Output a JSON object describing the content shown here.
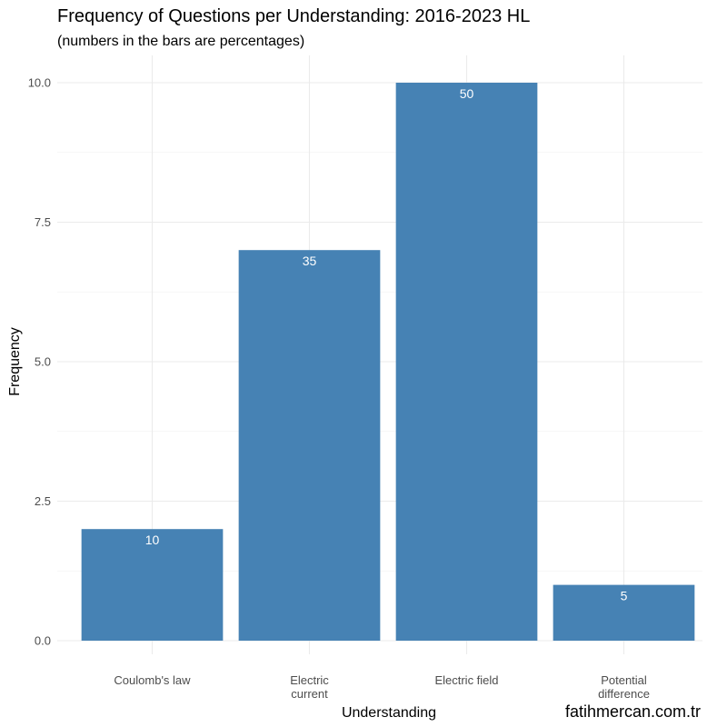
{
  "chart_data": {
    "type": "bar",
    "title": "Frequency of Questions per Understanding: 2016-2023 HL",
    "subtitle": "(numbers in the bars are percentages)",
    "xlabel": "Understanding",
    "ylabel": "Frequency",
    "categories": [
      [
        "Coulomb's law"
      ],
      [
        "Electric",
        "current"
      ],
      [
        "Electric field"
      ],
      [
        "Potential",
        "difference"
      ]
    ],
    "values": [
      2,
      7,
      10,
      1
    ],
    "bar_labels": [
      "10",
      "35",
      "50",
      "5"
    ],
    "ylim": [
      0,
      10
    ],
    "yticks": [
      0,
      2.5,
      5,
      7.5,
      10
    ],
    "ytick_labels": [
      "0.0",
      "2.5",
      "5.0",
      "7.5",
      "10.0"
    ],
    "grid": true,
    "bar_color": "#4682B4",
    "caption": "fatihmercan.com.tr"
  }
}
